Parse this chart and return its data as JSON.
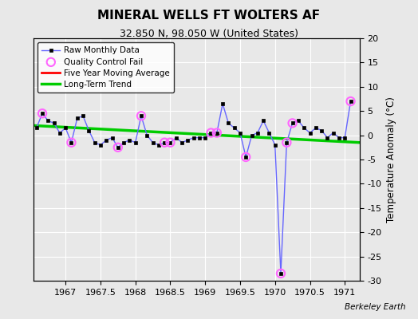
{
  "title": "MINERAL WELLS FT WOLTERS AF",
  "subtitle": "32.850 N, 98.050 W (United States)",
  "ylabel": "Temperature Anomaly (°C)",
  "watermark": "Berkeley Earth",
  "xlim": [
    1966.54,
    1971.21
  ],
  "ylim": [
    -30,
    20
  ],
  "xticks": [
    1967,
    1967.5,
    1968,
    1968.5,
    1969,
    1969.5,
    1970,
    1970.5,
    1971
  ],
  "yticks": [
    -30,
    -25,
    -20,
    -15,
    -10,
    -5,
    0,
    5,
    10,
    15,
    20
  ],
  "background_color": "#e8e8e8",
  "raw_x": [
    1966.583,
    1966.667,
    1966.75,
    1966.833,
    1966.917,
    1967.0,
    1967.083,
    1967.167,
    1967.25,
    1967.333,
    1967.417,
    1967.5,
    1967.583,
    1967.667,
    1967.75,
    1967.833,
    1967.917,
    1968.0,
    1968.083,
    1968.167,
    1968.25,
    1968.333,
    1968.417,
    1968.5,
    1968.583,
    1968.667,
    1968.75,
    1968.833,
    1968.917,
    1969.0,
    1969.083,
    1969.167,
    1969.25,
    1969.333,
    1969.417,
    1969.5,
    1969.583,
    1969.667,
    1969.75,
    1969.833,
    1969.917,
    1970.0,
    1970.083,
    1970.167,
    1970.25,
    1970.333,
    1970.417,
    1970.5,
    1970.583,
    1970.667,
    1970.75,
    1970.833,
    1970.917,
    1971.0,
    1971.083
  ],
  "raw_y": [
    1.5,
    4.5,
    3.0,
    2.5,
    0.5,
    1.5,
    -1.5,
    3.5,
    4.0,
    1.0,
    -1.5,
    -2.0,
    -1.0,
    -0.5,
    -2.5,
    -1.5,
    -1.0,
    -1.5,
    4.0,
    0.0,
    -1.5,
    -2.0,
    -1.5,
    -1.5,
    -0.5,
    -1.5,
    -1.0,
    -0.5,
    -0.5,
    -0.5,
    0.5,
    0.5,
    6.5,
    2.5,
    1.5,
    0.5,
    -4.5,
    0.0,
    0.5,
    3.0,
    0.5,
    -2.0,
    -28.5,
    -1.5,
    2.5,
    3.0,
    1.5,
    0.5,
    1.5,
    1.0,
    -0.5,
    0.5,
    -0.5,
    -0.5,
    7.0
  ],
  "qc_fail_x": [
    1966.667,
    1967.083,
    1967.75,
    1968.083,
    1968.417,
    1968.5,
    1969.083,
    1969.167,
    1969.583,
    1970.083,
    1970.167,
    1970.25,
    1971.083
  ],
  "qc_fail_y": [
    4.5,
    -1.5,
    -2.5,
    4.0,
    -1.5,
    -1.5,
    0.5,
    0.5,
    -4.5,
    -28.5,
    -1.5,
    2.5,
    7.0
  ],
  "trend_x": [
    1966.54,
    1971.21
  ],
  "trend_y": [
    2.0,
    -1.5
  ],
  "raw_line_color": "#6666ff",
  "raw_marker_color": "#000000",
  "qc_color": "#ff66ff",
  "trend_color": "#00cc00",
  "moving_avg_color": "#ff0000"
}
